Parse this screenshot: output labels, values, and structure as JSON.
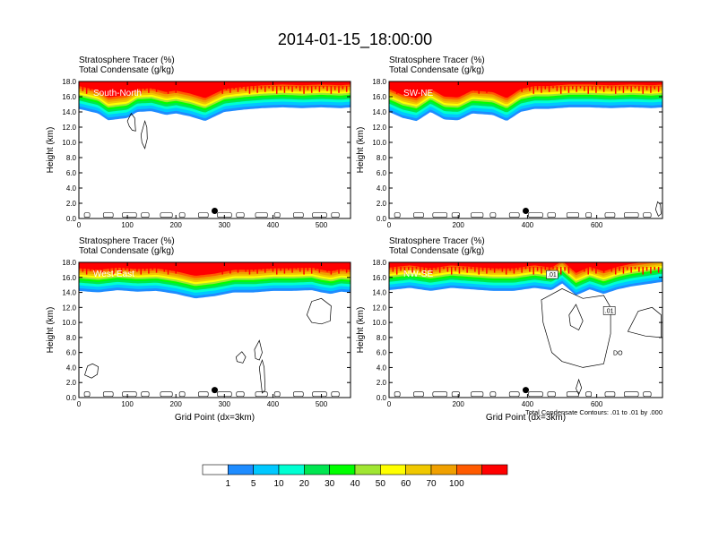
{
  "figure": {
    "title": "2014-01-15_18:00:00",
    "field_label": "Stratosphere Tracer   (%)",
    "contour_label": "Total Condensate   (g/kg)",
    "ylabel": "Height (km)",
    "xlabel": "Grid Point (dx=3km)",
    "contour_note": "Total Condensate Contours: .01 to .01 by .000",
    "box_labels": [
      ".01",
      ".01",
      "DO"
    ]
  },
  "colors": {
    "levels": [
      "#ffffff",
      "#1e8cff",
      "#00c8ff",
      "#00ffd2",
      "#00e650",
      "#00ff00",
      "#a0e632",
      "#ffff00",
      "#f0c800",
      "#f0a000",
      "#ff5a00",
      "#ff0000"
    ],
    "label_text": "#ffffff",
    "axis": "#000000"
  },
  "colorbar": {
    "labels": [
      "1",
      "5",
      "10",
      "20",
      "30",
      "40",
      "50",
      "60",
      "70",
      "100"
    ]
  },
  "chart_data": [
    {
      "type": "heatmap",
      "label": "South-North",
      "xlim": [
        0,
        560
      ],
      "ylim": [
        0,
        18
      ],
      "xticks": [
        "0",
        "100",
        "200",
        "300",
        "400",
        "500"
      ],
      "yticks": [
        "0.0",
        "2.0",
        "4.0",
        "6.0",
        "8.0",
        "10.0",
        "12.0",
        "14.0",
        "16.0",
        "18.0"
      ],
      "show_xlabel": false,
      "marker": [
        280,
        1.0
      ],
      "tropopause": {
        "x": [
          0,
          40,
          60,
          100,
          120,
          150,
          180,
          200,
          230,
          260,
          300,
          340,
          380,
          420,
          460,
          500,
          540,
          560
        ],
        "base": [
          14.4,
          13.8,
          12.9,
          13.2,
          14.0,
          14.1,
          13.6,
          13.8,
          13.4,
          12.8,
          14.0,
          14.3,
          14.5,
          14.6,
          14.5,
          14.6,
          14.5,
          14.6
        ]
      },
      "contours": [
        [
          [
            100,
            12.8
          ],
          [
            108,
            13.8
          ],
          [
            115,
            13.2
          ],
          [
            117,
            11.5
          ],
          [
            110,
            11.6
          ],
          [
            104,
            12.1
          ],
          [
            100,
            12.8
          ]
        ],
        [
          [
            128,
            11.0
          ],
          [
            136,
            12.8
          ],
          [
            140,
            12.0
          ],
          [
            141,
            10.5
          ],
          [
            136,
            9.2
          ],
          [
            130,
            10.0
          ],
          [
            128,
            11.0
          ]
        ]
      ]
    },
    {
      "type": "heatmap",
      "label": "SW-NE",
      "xlim": [
        0,
        790
      ],
      "ylim": [
        0,
        18
      ],
      "xticks": [
        "0",
        "200",
        "400",
        "600"
      ],
      "yticks": [
        "0.0",
        "2.0",
        "4.0",
        "6.0",
        "8.0",
        "10.0",
        "12.0",
        "14.0",
        "16.0",
        "18.0"
      ],
      "show_xlabel": false,
      "marker": [
        395,
        1.0
      ],
      "tropopause": {
        "x": [
          0,
          40,
          80,
          120,
          160,
          200,
          240,
          300,
          340,
          380,
          420,
          460,
          520,
          580,
          640,
          700,
          760,
          790
        ],
        "base": [
          14.0,
          13.2,
          12.8,
          14.0,
          13.0,
          12.9,
          13.8,
          13.6,
          12.8,
          14.0,
          14.4,
          14.4,
          14.6,
          14.6,
          14.5,
          14.6,
          14.5,
          14.6
        ]
      },
      "contours": [
        [
          [
            770,
            1.2
          ],
          [
            776,
            2.2
          ],
          [
            784,
            1.8
          ],
          [
            786,
            0.6
          ],
          [
            778,
            0.3
          ],
          [
            770,
            1.2
          ]
        ]
      ]
    },
    {
      "type": "heatmap",
      "label": "West-East",
      "xlim": [
        0,
        560
      ],
      "ylim": [
        0,
        18
      ],
      "xticks": [
        "0",
        "100",
        "200",
        "300",
        "400",
        "500"
      ],
      "yticks": [
        "0.0",
        "2.0",
        "4.0",
        "6.0",
        "8.0",
        "10.0",
        "12.0",
        "14.0",
        "16.0",
        "18.0"
      ],
      "show_xlabel": true,
      "marker": [
        280,
        1.0
      ],
      "tropopause": {
        "x": [
          0,
          40,
          80,
          120,
          160,
          200,
          240,
          280,
          320,
          360,
          400,
          440,
          480,
          500,
          520,
          540,
          560
        ],
        "base": [
          14.2,
          14.0,
          14.3,
          14.1,
          14.2,
          13.8,
          13.2,
          13.5,
          14.0,
          14.0,
          14.2,
          14.2,
          14.3,
          14.0,
          13.8,
          14.1,
          14.0
        ]
      },
      "contours": [
        [
          [
            470,
            11.0
          ],
          [
            480,
            12.8
          ],
          [
            500,
            13.2
          ],
          [
            520,
            12.2
          ],
          [
            518,
            10.2
          ],
          [
            500,
            9.8
          ],
          [
            480,
            10.0
          ],
          [
            470,
            11.0
          ]
        ],
        [
          [
            12,
            3.0
          ],
          [
            18,
            4.2
          ],
          [
            28,
            4.5
          ],
          [
            40,
            4.1
          ],
          [
            38,
            3.1
          ],
          [
            26,
            2.6
          ],
          [
            12,
            3.0
          ]
        ],
        [
          [
            362,
            6.4
          ],
          [
            372,
            7.6
          ],
          [
            378,
            6.0
          ],
          [
            372,
            5.0
          ],
          [
            364,
            5.2
          ],
          [
            362,
            6.4
          ]
        ],
        [
          [
            372,
            4.0
          ],
          [
            378,
            0.6
          ],
          [
            384,
            1.0
          ],
          [
            382,
            4.0
          ],
          [
            378,
            5.0
          ],
          [
            372,
            4.0
          ]
        ],
        [
          [
            324,
            5.4
          ],
          [
            336,
            6.1
          ],
          [
            344,
            5.4
          ],
          [
            338,
            4.6
          ],
          [
            326,
            4.8
          ],
          [
            324,
            5.4
          ]
        ]
      ]
    },
    {
      "type": "heatmap",
      "label": "NW-SE",
      "xlim": [
        0,
        790
      ],
      "ylim": [
        0,
        18
      ],
      "xticks": [
        "0",
        "200",
        "400",
        "600"
      ],
      "yticks": [
        "0.0",
        "2.0",
        "4.0",
        "6.0",
        "8.0",
        "10.0",
        "12.0",
        "14.0",
        "16.0",
        "18.0"
      ],
      "show_xlabel": true,
      "marker": [
        395,
        1.0
      ],
      "tropopause": {
        "x": [
          0,
          60,
          120,
          180,
          240,
          300,
          360,
          420,
          470,
          500,
          540,
          580,
          620,
          660,
          700,
          760,
          790
        ],
        "base": [
          14.3,
          14.6,
          14.2,
          14.6,
          14.4,
          14.2,
          14.2,
          14.6,
          14.3,
          15.2,
          13.6,
          14.4,
          13.8,
          14.4,
          14.8,
          15.2,
          15.4
        ]
      },
      "contours": [
        [
          [
            440,
            13.0
          ],
          [
            500,
            14.5
          ],
          [
            560,
            13.2
          ],
          [
            620,
            13.6
          ],
          [
            640,
            12.0
          ],
          [
            640,
            8.5
          ],
          [
            620,
            4.5
          ],
          [
            560,
            4.0
          ],
          [
            500,
            4.8
          ],
          [
            470,
            6.0
          ],
          [
            445,
            10.0
          ],
          [
            440,
            13.0
          ]
        ],
        [
          [
            690,
            8.8
          ],
          [
            720,
            11.5
          ],
          [
            760,
            12.0
          ],
          [
            786,
            11.0
          ],
          [
            786,
            8.0
          ],
          [
            740,
            8.2
          ],
          [
            690,
            8.8
          ]
        ],
        [
          [
            520,
            11.0
          ],
          [
            540,
            12.4
          ],
          [
            560,
            10.2
          ],
          [
            548,
            9.0
          ],
          [
            524,
            9.6
          ],
          [
            520,
            11.0
          ]
        ],
        [
          [
            540,
            1.2
          ],
          [
            548,
            2.4
          ],
          [
            556,
            1.3
          ],
          [
            548,
            0.4
          ],
          [
            540,
            1.2
          ]
        ]
      ]
    }
  ]
}
